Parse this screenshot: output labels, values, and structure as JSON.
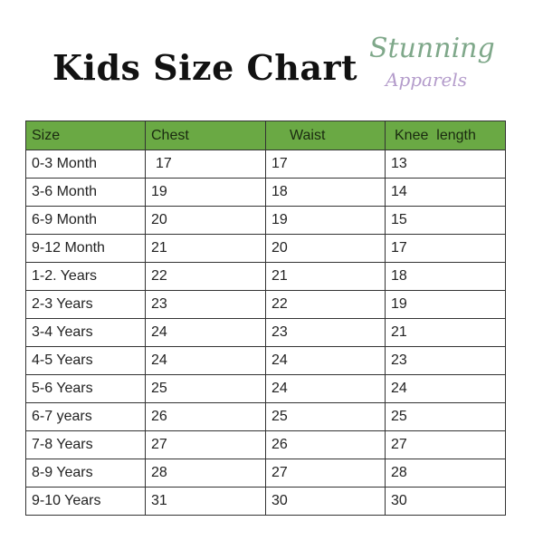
{
  "title": "Kids Size Chart",
  "logo": {
    "line1": "Stunning",
    "line2": "Apparels"
  },
  "colors": {
    "header_bg": "#6aa944",
    "logo_green": "#7fa88a",
    "logo_purple": "#b49ccb"
  },
  "table": {
    "headers": [
      "Size",
      "Chest",
      "Waist",
      "Knee  length"
    ],
    "rows": [
      [
        "0-3 Month",
        "17",
        "17",
        "13"
      ],
      [
        "3-6 Month",
        "19",
        "18",
        "14"
      ],
      [
        "6-9 Month",
        "20",
        "19",
        "15"
      ],
      [
        "9-12 Month",
        "21",
        "20",
        "17"
      ],
      [
        "1-2. Years",
        "22",
        "21",
        "18"
      ],
      [
        "2-3 Years",
        "23",
        "22",
        "19"
      ],
      [
        "3-4 Years",
        "24",
        "23",
        "21"
      ],
      [
        "4-5 Years",
        "24",
        "24",
        "23"
      ],
      [
        "5-6 Years",
        "25",
        "24",
        "24"
      ],
      [
        "6-7 years",
        "26",
        "25",
        "25"
      ],
      [
        "7-8 Years",
        "27",
        "26",
        "27"
      ],
      [
        "8-9 Years",
        "28",
        "27",
        "28"
      ],
      [
        "9-10 Years",
        "31",
        "30",
        "30"
      ]
    ]
  }
}
